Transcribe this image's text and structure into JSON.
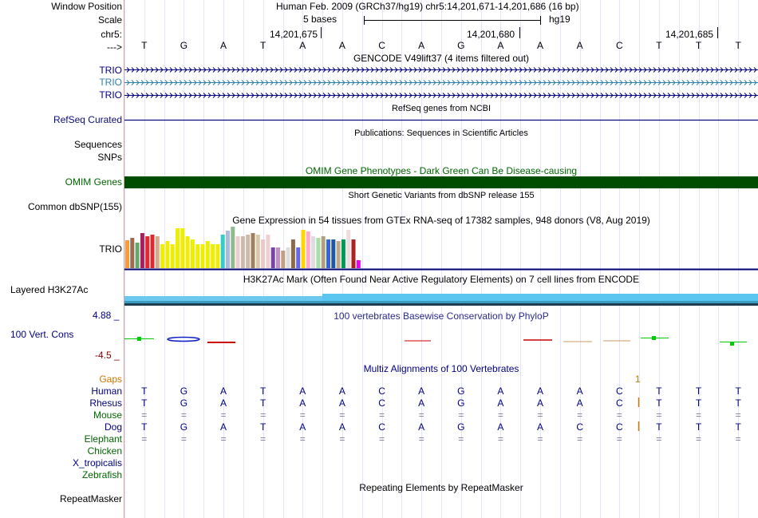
{
  "header": {
    "window_position_label": "Window Position",
    "window_position_value": "Human Feb. 2009 (GRCh37/hg19)   chr5:14,201,671-14,201,686 (16 bp)",
    "scale_label": "Scale",
    "scale_bases": "5 bases",
    "scale_assembly": "hg19",
    "chrom_label": "chr5:",
    "arrow_label": "--->",
    "positions": [
      "14,201,675",
      "14,201,680",
      "14,201,685"
    ]
  },
  "sequence": [
    "T",
    "G",
    "A",
    "T",
    "A",
    "A",
    "C",
    "A",
    "G",
    "A",
    "A",
    "A",
    "C",
    "T",
    "T",
    "T"
  ],
  "tracks": {
    "gencode": {
      "title": "GENCODE V49lift37 (4 items filtered out)",
      "items": [
        "TRIO",
        "TRIO",
        "TRIO"
      ]
    },
    "refseq": {
      "title": "RefSeq genes from NCBI",
      "label": "RefSeq Curated"
    },
    "publications": {
      "title": "Publications: Sequences in Scientific Articles",
      "labels": [
        "Sequences",
        "SNPs"
      ]
    },
    "omim": {
      "title": "OMIM Gene Phenotypes - Dark Green Can Be Disease-causing",
      "label": "OMIM Genes",
      "color": "#004d00"
    },
    "dbsnp": {
      "title": "Short Genetic Variants from dbSNP release 155",
      "label": "Common dbSNP(155)"
    },
    "gtex": {
      "title": "Gene Expression in 54 tissues from GTEx RNA-seq of 17382 samples, 948 donors (V8, Aug 2019)",
      "label": "TRIO"
    },
    "h3k27ac": {
      "title": "H3K27Ac Mark (Often Found Near Active Regulatory Elements) on 7 cell lines from ENCODE",
      "label": "Layered H3K27Ac"
    },
    "phylop": {
      "title": "100 vertebrates Basewise Conservation by PhyloP",
      "label": "100 Vert. Cons",
      "max": "4.88 _",
      "min": "-4.5 _"
    },
    "multiz": {
      "title": "Multiz Alignments of 100 Vertebrates",
      "gaps_label": "Gaps",
      "gap_marker": "1",
      "species": [
        {
          "name": "Human",
          "bases": [
            "T",
            "G",
            "A",
            "T",
            "A",
            "A",
            "C",
            "A",
            "G",
            "A",
            "A",
            "A",
            "C",
            "T",
            "T",
            "T"
          ]
        },
        {
          "name": "Rhesus",
          "bases": [
            "T",
            "G",
            "A",
            "T",
            "A",
            "A",
            "C",
            "A",
            "G",
            "A",
            "A",
            "A",
            "C",
            "T",
            "T",
            "T"
          ]
        },
        {
          "name": "Mouse",
          "bases": [
            "=",
            "=",
            "=",
            "=",
            "=",
            "=",
            "=",
            "=",
            "=",
            "=",
            "=",
            "=",
            "=",
            "=",
            "=",
            "="
          ]
        },
        {
          "name": "Dog",
          "bases": [
            "T",
            "G",
            "A",
            "T",
            "A",
            "A",
            "C",
            "A",
            "G",
            "A",
            "A",
            "C",
            "C",
            "T",
            "T",
            "T"
          ]
        },
        {
          "name": "Elephant",
          "bases": [
            "=",
            "=",
            "=",
            "=",
            "=",
            "=",
            "=",
            "=",
            "=",
            "=",
            "=",
            "=",
            "=",
            "=",
            "=",
            "="
          ]
        },
        {
          "name": "Chicken",
          "bases": []
        },
        {
          "name": "X_tropicalis",
          "bases": []
        },
        {
          "name": "Zebrafish",
          "bases": []
        }
      ]
    },
    "repeatmasker": {
      "title": "Repeating Elements by RepeatMasker",
      "label": "RepeatMasker"
    }
  },
  "gtex_values": [
    {
      "v": 0.35,
      "c": "#FF9933"
    },
    {
      "v": 0.38,
      "c": "#9E6B52"
    },
    {
      "v": 0.32,
      "c": "#66A66A"
    },
    {
      "v": 0.44,
      "c": "#AA1E5E"
    },
    {
      "v": 0.4,
      "c": "#E0282E"
    },
    {
      "v": 0.42,
      "c": "#E0282E"
    },
    {
      "v": 0.4,
      "c": "#D4A98C"
    },
    {
      "v": 0.3,
      "c": "#EEEE00"
    },
    {
      "v": 0.34,
      "c": "#EEEE00"
    },
    {
      "v": 0.3,
      "c": "#EEEE00"
    },
    {
      "v": 0.5,
      "c": "#EEEE00"
    },
    {
      "v": 0.5,
      "c": "#EEEE00"
    },
    {
      "v": 0.4,
      "c": "#EEEE00"
    },
    {
      "v": 0.36,
      "c": "#EEEE00"
    },
    {
      "v": 0.3,
      "c": "#EEEE00"
    },
    {
      "v": 0.3,
      "c": "#EEEE00"
    },
    {
      "v": 0.34,
      "c": "#EEEE00"
    },
    {
      "v": 0.3,
      "c": "#EEEE00"
    },
    {
      "v": 0.3,
      "c": "#EEEE00"
    },
    {
      "v": 0.42,
      "c": "#33CCCC"
    },
    {
      "v": 0.47,
      "c": "#AABBDD"
    },
    {
      "v": 0.52,
      "c": "#8FBC8F"
    },
    {
      "v": 0.4,
      "c": "#EECCCC"
    },
    {
      "v": 0.4,
      "c": "#CCBBAA"
    },
    {
      "v": 0.42,
      "c": "#CCBBAA"
    },
    {
      "v": 0.44,
      "c": "#A08060"
    },
    {
      "v": 0.42,
      "c": "#D8C8A8"
    },
    {
      "v": 0.36,
      "c": "#EEC8C8"
    },
    {
      "v": 0.42,
      "c": "#EED0D0"
    },
    {
      "v": 0.26,
      "c": "#7744AA"
    },
    {
      "v": 0.26,
      "c": "#C090C0"
    },
    {
      "v": 0.22,
      "c": "#C0A080"
    },
    {
      "v": 0.26,
      "c": "#DDDDDD"
    },
    {
      "v": 0.36,
      "c": "#8B6B4B"
    },
    {
      "v": 0.26,
      "c": "#6666EE"
    },
    {
      "v": 0.48,
      "c": "#FFD700"
    },
    {
      "v": 0.46,
      "c": "#FFAACC"
    },
    {
      "v": 0.4,
      "c": "#DDDDDD"
    },
    {
      "v": 0.38,
      "c": "#AADDAA"
    },
    {
      "v": 0.4,
      "c": "#B0A080"
    },
    {
      "v": 0.36,
      "c": "#3366DD"
    },
    {
      "v": 0.36,
      "c": "#2255AA"
    },
    {
      "v": 0.34,
      "c": "#BBAA88"
    },
    {
      "v": 0.36,
      "c": "#009955"
    },
    {
      "v": 0.48,
      "c": "#EEDDDD"
    },
    {
      "v": 0.36,
      "c": "#AA2222"
    },
    {
      "v": 0.1,
      "c": "#EE00EE"
    }
  ],
  "colors": {
    "label_blue": "#000080",
    "gencode_mid": "#3080b0",
    "refseq": "#0c0c78",
    "omim_dark": "#004d00",
    "phylop_pos": "#00cc00",
    "phylop_neg": "#cc0000",
    "gaps": "#cc7700",
    "h3k27ac": "#5bc7f0"
  }
}
